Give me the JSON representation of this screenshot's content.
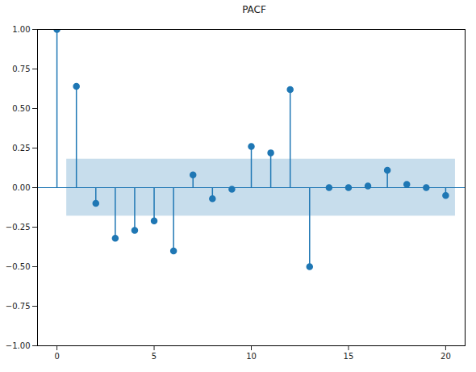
{
  "chart_data": {
    "type": "stem",
    "title": "PACF",
    "x": [
      0,
      1,
      2,
      3,
      4,
      5,
      6,
      7,
      8,
      9,
      10,
      11,
      12,
      13,
      14,
      15,
      16,
      17,
      18,
      19,
      20
    ],
    "values": [
      1.0,
      0.64,
      -0.1,
      -0.32,
      -0.27,
      -0.21,
      -0.4,
      0.08,
      -0.07,
      -0.01,
      0.26,
      0.22,
      0.62,
      -0.5,
      0.0,
      0.0,
      0.01,
      0.11,
      0.02,
      0.0,
      -0.05
    ],
    "color": "#1f77b4",
    "marker": "o",
    "confidence_interval": {
      "lower": -0.18,
      "upper": 0.18
    },
    "xlim": [
      -1,
      21
    ],
    "ylim": [
      -1,
      1
    ],
    "xticks": [
      0,
      5,
      10,
      15,
      20
    ],
    "yticks": [
      {
        "value": -1,
        "label": "−1.00"
      },
      {
        "value": -0.75,
        "label": "−0.75"
      },
      {
        "value": -0.5,
        "label": "−0.50"
      },
      {
        "value": -0.25,
        "label": "−0.25"
      },
      {
        "value": 0,
        "label": "0.00"
      },
      {
        "value": 0.25,
        "label": "0.25"
      },
      {
        "value": 0.5,
        "label": "0.50"
      },
      {
        "value": 0.75,
        "label": "0.75"
      },
      {
        "value": 1,
        "label": "1.00"
      }
    ]
  }
}
